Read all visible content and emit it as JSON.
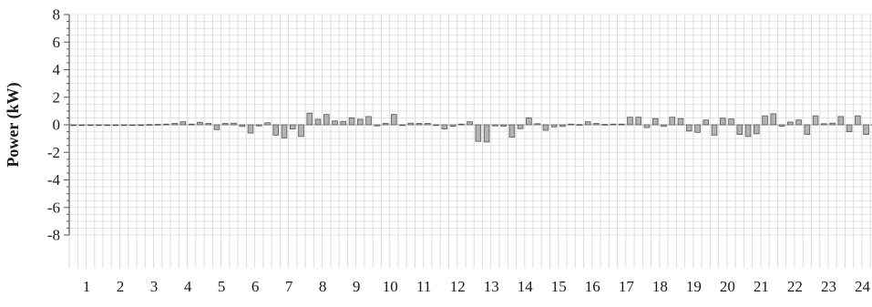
{
  "chart_data": {
    "type": "bar",
    "title": "",
    "xlabel": "",
    "ylabel": "Power (kW)",
    "ylim": [
      -8,
      8
    ],
    "yticks": [
      8,
      6,
      4,
      2,
      0,
      -2,
      -4,
      -6,
      -8
    ],
    "x_tick_labels": [
      "1",
      "2",
      "3",
      "4",
      "5",
      "6",
      "7",
      "8",
      "9",
      "10",
      "11",
      "12",
      "13",
      "14",
      "15",
      "16",
      "17",
      "18",
      "19",
      "20",
      "21",
      "22",
      "23",
      "24"
    ],
    "x_ticks_per_label": 4,
    "grid": true,
    "bar_color": "#b3b3b3",
    "bar_edge_color": "#555555",
    "values": [
      0,
      0,
      0,
      0,
      0,
      0,
      0,
      0,
      0,
      0.02,
      0.03,
      0.05,
      0.1,
      0.22,
      0.05,
      0.18,
      0.1,
      -0.35,
      0.1,
      0.12,
      -0.12,
      -0.6,
      -0.08,
      0.15,
      -0.75,
      -0.95,
      -0.3,
      -0.85,
      0.85,
      0.4,
      0.75,
      0.28,
      0.25,
      0.5,
      0.4,
      0.6,
      -0.08,
      0.1,
      0.75,
      -0.05,
      0.12,
      0.1,
      0.1,
      -0.05,
      -0.3,
      -0.1,
      0.05,
      0.22,
      -1.2,
      -1.25,
      -0.08,
      -0.1,
      -0.9,
      -0.28,
      0.5,
      0.08,
      -0.4,
      -0.15,
      -0.12,
      0.05,
      0.02,
      0.22,
      0.1,
      0.03,
      0.05,
      0.05,
      0.55,
      0.55,
      -0.2,
      0.45,
      -0.12,
      0.55,
      0.45,
      -0.45,
      -0.55,
      0.35,
      -0.75,
      0.48,
      0.42,
      -0.7,
      -0.85,
      -0.65,
      0.65,
      0.8,
      -0.1,
      0.2,
      0.35,
      -0.7,
      0.65,
      0.08,
      0.12,
      0.6,
      -0.5,
      0.65,
      -0.7,
      0.02
    ]
  }
}
